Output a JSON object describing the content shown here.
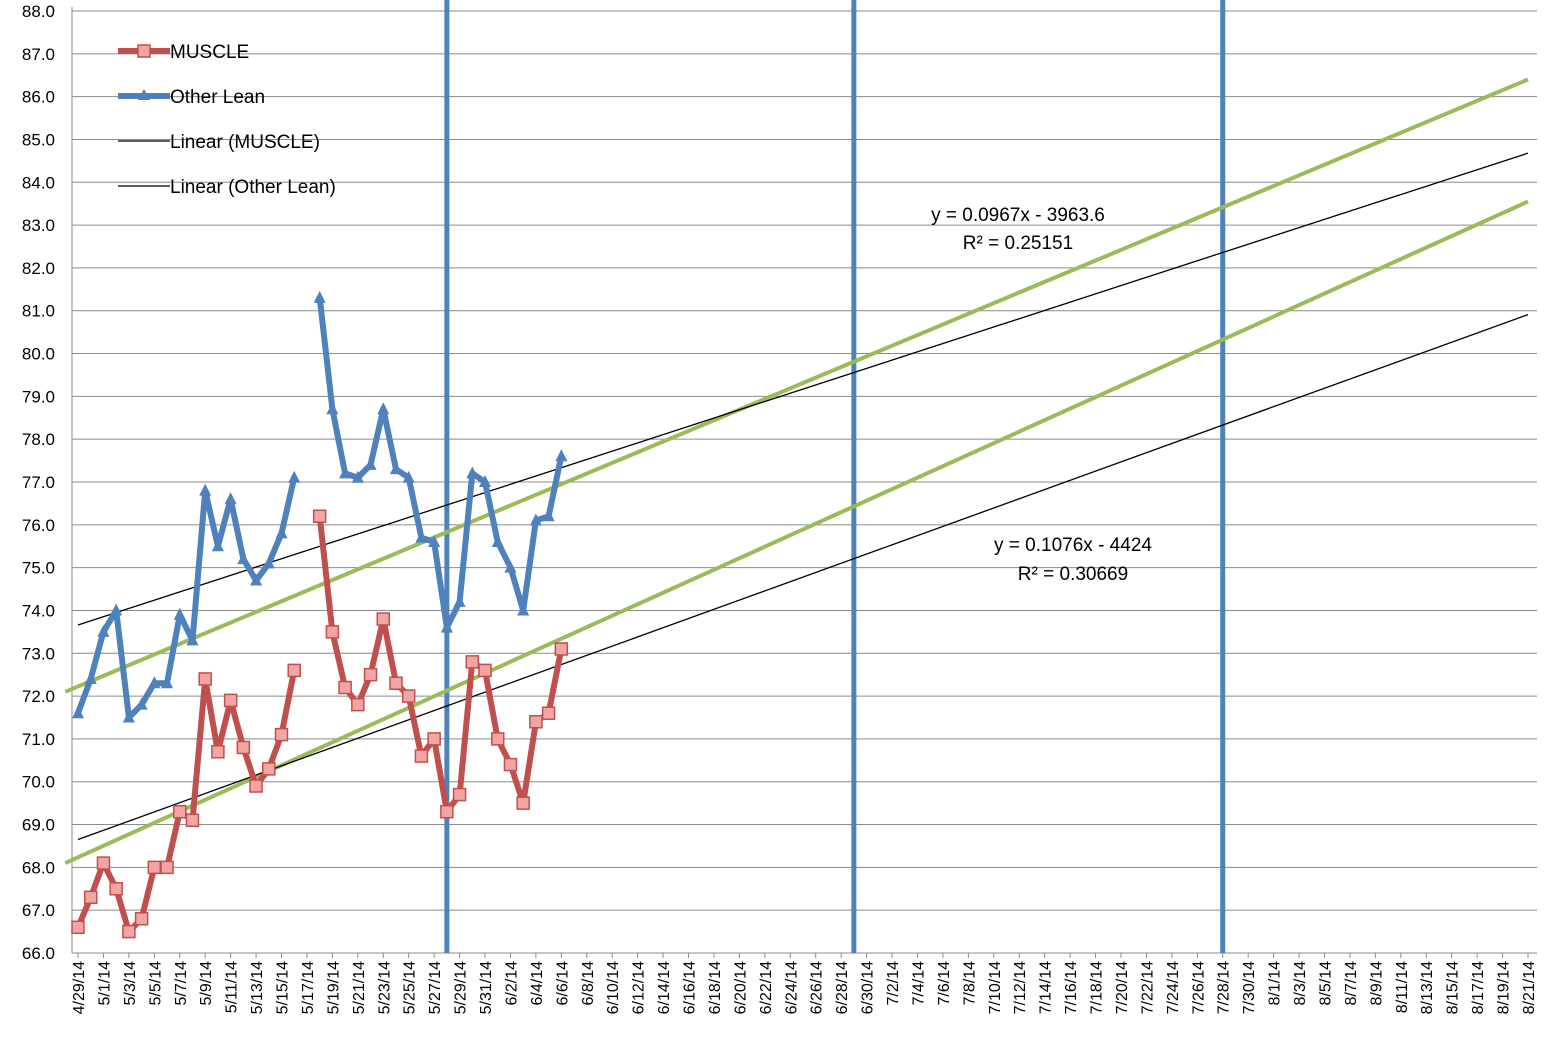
{
  "chart_data": {
    "type": "line",
    "title": "",
    "xlabel": "",
    "ylabel": "",
    "ylim": [
      66.0,
      88.0
    ],
    "ystep": 1.0,
    "grid": true,
    "legend_position": "top-left",
    "x_ticks": [
      "4/29/14",
      "5/1/14",
      "5/3/14",
      "5/5/14",
      "5/7/14",
      "5/9/14",
      "5/11/14",
      "5/13/14",
      "5/15/14",
      "5/17/14",
      "5/19/14",
      "5/21/14",
      "5/23/14",
      "5/25/14",
      "5/27/14",
      "5/29/14",
      "5/31/14",
      "6/2/14",
      "6/4/14",
      "6/6/14",
      "6/8/14",
      "6/10/14",
      "6/12/14",
      "6/14/14",
      "6/16/14",
      "6/18/14",
      "6/20/14",
      "6/22/14",
      "6/24/14",
      "6/26/14",
      "6/28/14",
      "6/30/14",
      "7/2/14",
      "7/4/14",
      "7/6/14",
      "7/8/14",
      "7/10/14",
      "7/12/14",
      "7/14/14",
      "7/16/14",
      "7/18/14",
      "7/20/14",
      "7/22/14",
      "7/24/14",
      "7/26/14",
      "7/28/14",
      "7/30/14",
      "8/1/14",
      "8/3/14",
      "8/5/14",
      "8/7/14",
      "8/9/14",
      "8/11/14",
      "8/13/14",
      "8/15/14",
      "8/17/14",
      "8/19/14",
      "8/21/14"
    ],
    "series": [
      {
        "name": "MUSCLE",
        "color": "#c0504d",
        "marker": "square",
        "segments": [
          {
            "x": [
              "4/29/14",
              "4/30/14",
              "5/1/14",
              "5/2/14",
              "5/3/14",
              "5/4/14",
              "5/5/14",
              "5/6/14",
              "5/7/14",
              "5/8/14",
              "5/9/14",
              "5/10/14",
              "5/11/14",
              "5/12/14",
              "5/13/14",
              "5/14/14",
              "5/15/14",
              "5/16/14"
            ],
            "y": [
              66.6,
              67.3,
              68.1,
              67.5,
              66.5,
              66.8,
              68.0,
              68.0,
              69.3,
              69.1,
              72.4,
              70.7,
              71.9,
              70.8,
              69.9,
              70.3,
              71.1,
              72.6
            ]
          },
          {
            "x": [
              "5/18/14",
              "5/19/14",
              "5/20/14",
              "5/21/14",
              "5/22/14",
              "5/23/14",
              "5/24/14",
              "5/25/14",
              "5/26/14",
              "5/27/14",
              "5/28/14",
              "5/29/14",
              "5/30/14",
              "5/31/14",
              "6/1/14",
              "6/2/14",
              "6/3/14",
              "6/4/14",
              "6/5/14",
              "6/6/14"
            ],
            "y": [
              76.2,
              73.5,
              72.2,
              71.8,
              72.5,
              73.8,
              72.3,
              72.0,
              70.6,
              71.0,
              69.3,
              69.7,
              72.8,
              72.6,
              71.0,
              70.4,
              69.5,
              71.4,
              71.6,
              73.1
            ]
          }
        ]
      },
      {
        "name": "Other Lean",
        "color": "#4f81bd",
        "marker": "triangle",
        "segments": [
          {
            "x": [
              "4/29/14",
              "4/30/14",
              "5/1/14",
              "5/2/14",
              "5/3/14",
              "5/4/14",
              "5/5/14",
              "5/6/14",
              "5/7/14",
              "5/8/14",
              "5/9/14",
              "5/10/14",
              "5/11/14",
              "5/12/14",
              "5/13/14",
              "5/14/14",
              "5/15/14",
              "5/16/14"
            ],
            "y": [
              71.6,
              72.4,
              73.5,
              74.0,
              71.5,
              71.8,
              72.3,
              72.3,
              73.9,
              73.3,
              76.8,
              75.5,
              76.6,
              75.2,
              74.7,
              75.1,
              75.8,
              77.1
            ]
          },
          {
            "x": [
              "5/18/14",
              "5/19/14",
              "5/20/14",
              "5/21/14",
              "5/22/14",
              "5/23/14",
              "5/24/14",
              "5/25/14",
              "5/26/14",
              "5/27/14",
              "5/28/14",
              "5/29/14",
              "5/30/14",
              "5/31/14",
              "6/1/14",
              "6/2/14",
              "6/3/14",
              "6/4/14",
              "6/5/14",
              "6/6/14"
            ],
            "y": [
              81.3,
              78.7,
              77.2,
              77.1,
              77.4,
              78.7,
              77.3,
              77.1,
              75.7,
              75.6,
              73.6,
              74.2,
              77.2,
              77.0,
              75.6,
              75.0,
              74.0,
              76.1,
              76.2,
              77.6
            ]
          }
        ]
      }
    ],
    "trendlines": [
      {
        "name": "Linear (MUSCLE)",
        "color": "#000000",
        "x": [
          "4/29/14",
          "8/21/14"
        ],
        "y": [
          68.65,
          80.91
        ]
      },
      {
        "name": "Linear (Other Lean)",
        "color": "#000000",
        "x": [
          "4/29/14",
          "8/21/14"
        ],
        "y": [
          73.66,
          84.68
        ]
      }
    ],
    "green_lines": [
      {
        "color": "#9bbb59",
        "x": [
          "4/28/14",
          "8/21/14"
        ],
        "y": [
          68.1,
          83.55
        ]
      },
      {
        "color": "#9bbb59",
        "x": [
          "4/28/14",
          "8/21/14"
        ],
        "y": [
          72.1,
          86.4
        ]
      }
    ],
    "vertical_lines": {
      "color": "#4f81bd",
      "x": [
        "5/28/14",
        "6/29/14",
        "7/28/14"
      ]
    },
    "equations": [
      {
        "line1": "y = 0.0967x - 3963.6",
        "line2": "R² = 0.25151"
      },
      {
        "line1": "y = 0.1076x - 4424",
        "line2": "R² = 0.30669"
      }
    ]
  }
}
